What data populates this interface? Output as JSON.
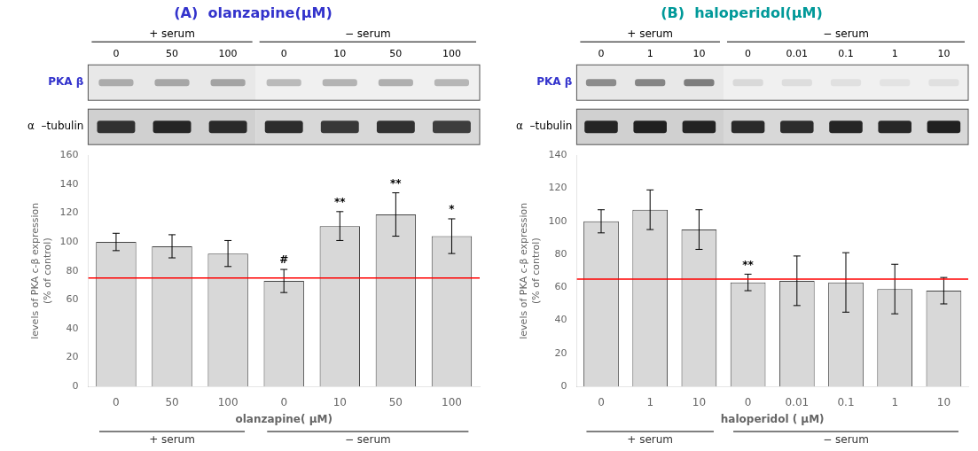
{
  "chart_data": [
    {
      "type": "bar",
      "title": "(A)  olanzapine(μM)",
      "title_color": "#3333cc",
      "categories": [
        "0",
        "50",
        "100",
        "0",
        "10",
        "50",
        "100"
      ],
      "values": [
        100,
        97,
        92,
        73,
        111,
        119,
        104
      ],
      "errors": [
        6,
        8,
        9,
        8,
        10,
        15,
        12
      ],
      "annotations": [
        "",
        "",
        "",
        "#",
        "**",
        "**",
        "*"
      ],
      "color": "#d8d8d8",
      "edge_color": "#444444",
      "reference_line": {
        "value": 75,
        "color": "red"
      },
      "ylabel": "levels of PKA c-β expression\n(% of control)",
      "xlabel": "olanzapine( μM)",
      "ylim": [
        0,
        160
      ],
      "yticks": [
        0,
        20,
        40,
        60,
        80,
        100,
        120,
        140,
        160
      ],
      "grid": false,
      "groups": [
        {
          "label": "+ serum",
          "count": 3
        },
        {
          "label": "− serum",
          "count": 4
        }
      ],
      "blot": {
        "labels": [
          "PKA β",
          "α  –tubulin"
        ],
        "label_color": "#3333cc",
        "pka_intensities": [
          0.55,
          0.58,
          0.6,
          0.45,
          0.5,
          0.52,
          0.48
        ],
        "tubulin_intensities": [
          0.85,
          0.9,
          0.88,
          0.87,
          0.82,
          0.85,
          0.8
        ]
      }
    },
    {
      "type": "bar",
      "title": "(B)  haloperidol(μM)",
      "title_color": "#009999",
      "categories": [
        "0",
        "1",
        "10",
        "0",
        "0.01",
        "0.1",
        "1",
        "10"
      ],
      "values": [
        100,
        107,
        95,
        63,
        64,
        63,
        59,
        58
      ],
      "errors": [
        7,
        12,
        12,
        5,
        15,
        18,
        15,
        8
      ],
      "annotations": [
        "",
        "",
        "",
        "**",
        "",
        "",
        "",
        ""
      ],
      "color": "#d8d8d8",
      "edge_color": "#444444",
      "reference_line": {
        "value": 65,
        "color": "red"
      },
      "ylabel": "levels of PKA c-β expression\n(% of control)",
      "xlabel": "haloperidol ( μM)",
      "ylim": [
        0,
        140
      ],
      "yticks": [
        0,
        20,
        40,
        60,
        80,
        100,
        120,
        140
      ],
      "grid": false,
      "groups": [
        {
          "label": "+ serum",
          "count": 3
        },
        {
          "label": "− serum",
          "count": 5
        }
      ],
      "blot": {
        "labels": [
          "PKA β",
          "α  –tubulin"
        ],
        "label_color": "#3333cc",
        "pka_intensities": [
          0.75,
          0.8,
          0.85,
          0.25,
          0.22,
          0.2,
          0.18,
          0.2
        ],
        "tubulin_intensities": [
          0.9,
          0.92,
          0.91,
          0.88,
          0.87,
          0.9,
          0.89,
          0.92
        ]
      }
    }
  ]
}
